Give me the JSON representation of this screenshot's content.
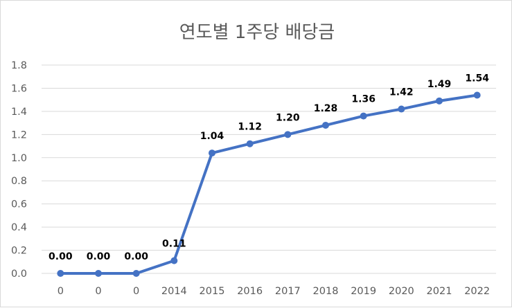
{
  "chart_data": {
    "type": "line",
    "title": "연도별 1주당 배당금",
    "categories": [
      "0",
      "0",
      "0",
      "2014",
      "2015",
      "2016",
      "2017",
      "2018",
      "2019",
      "2020",
      "2021",
      "2022"
    ],
    "series": [
      {
        "values": [
          0.0,
          0.0,
          0.0,
          0.11,
          1.04,
          1.12,
          1.2,
          1.28,
          1.36,
          1.42,
          1.49,
          1.54
        ],
        "labels": [
          "0.00",
          "0.00",
          "0.00",
          "0.11",
          "1.04",
          "1.12",
          "1.20",
          "1.28",
          "1.36",
          "1.42",
          "1.49",
          "1.54"
        ],
        "color": "#4472c4"
      }
    ],
    "yticks": [
      "0.0",
      "0.2",
      "0.4",
      "0.6",
      "0.8",
      "1.0",
      "1.2",
      "1.4",
      "1.6",
      "1.8"
    ],
    "ylim": [
      0,
      1.8
    ],
    "grid": true,
    "xlabel": "",
    "ylabel": "",
    "colors": {
      "gridline": "#d9d9d9",
      "axis_text": "#595959",
      "line": "#4472c4"
    }
  }
}
